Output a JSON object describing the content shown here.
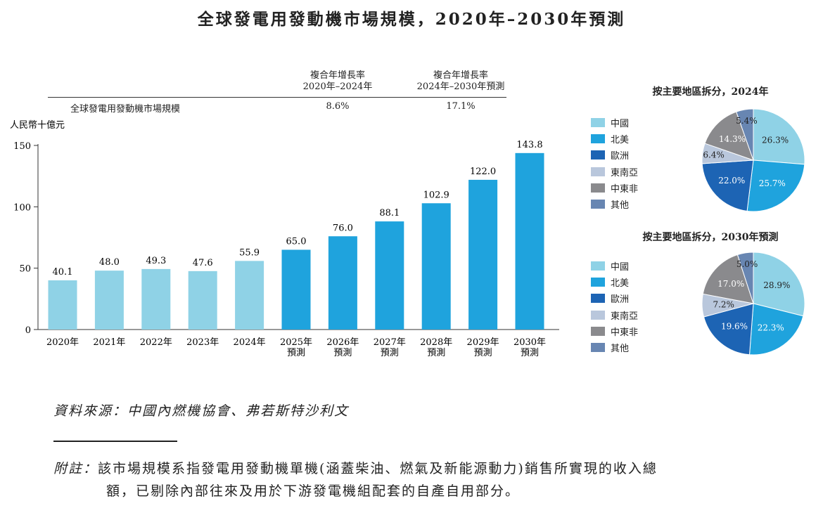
{
  "title": "全球發電用發動機市場規模，2020年–2030年預測",
  "cagr_table": {
    "row_label": "全球發電用發動機市場規模",
    "columns": [
      {
        "header_line1": "複合年增長率",
        "header_line2": "2020年–2024年",
        "value": "8.6%"
      },
      {
        "header_line1": "複合年增長率",
        "header_line2": "2024年–2030年預測",
        "value": "17.1%"
      }
    ]
  },
  "chart_data": [
    {
      "type": "bar",
      "title": "全球發電用發動機市場規模，2020年–2030年預測",
      "ylabel": "人民幣十億元",
      "xlabel": "",
      "ylim": [
        0,
        150
      ],
      "yticks": [
        0,
        50,
        100,
        150
      ],
      "categories": [
        "2020年",
        "2021年",
        "2022年",
        "2023年",
        "2024年",
        "2025年\n預測",
        "2026年\n預測",
        "2027年\n預測",
        "2028年\n預測",
        "2029年\n預測",
        "2030年\n預測"
      ],
      "values": [
        40.1,
        48.0,
        49.3,
        47.6,
        55.9,
        65.0,
        76.0,
        88.1,
        102.9,
        122.0,
        143.8
      ],
      "value_labels": [
        "40.1",
        "48.0",
        "49.3",
        "47.6",
        "55.9",
        "65.0",
        "76.0",
        "88.1",
        "102.9",
        "122.0",
        "143.8"
      ],
      "colors": {
        "historical": "#8fd2e6",
        "forecast": "#1fa3dd"
      }
    },
    {
      "type": "pie",
      "title": "按主要地區拆分，2024年",
      "labels": [
        "中國",
        "北美",
        "歐洲",
        "東南亞",
        "中東非",
        "其他"
      ],
      "values": [
        26.3,
        25.7,
        22.0,
        6.4,
        14.3,
        5.4
      ],
      "value_labels": [
        "26.3%",
        "25.7%",
        "22.0%",
        "6.4%",
        "14.3%",
        "5.4%"
      ]
    },
    {
      "type": "pie",
      "title": "按主要地區拆分，2030年預測",
      "labels": [
        "中國",
        "北美",
        "歐洲",
        "東南亞",
        "中東非",
        "其他"
      ],
      "values": [
        28.9,
        22.3,
        19.6,
        7.2,
        17.0,
        5.0
      ],
      "value_labels": [
        "28.9%",
        "22.3%",
        "19.6%",
        "7.2%",
        "17.0%",
        "5.0%"
      ]
    }
  ],
  "legend": {
    "labels": [
      "中國",
      "北美",
      "歐洲",
      "東南亞",
      "中東非",
      "其他"
    ],
    "colors": [
      "#8fd2e6",
      "#1fa3dd",
      "#1d64b4",
      "#b9c7dc",
      "#8a8a8d",
      "#6886b2"
    ]
  },
  "source": "資料來源：中國內燃機協會、弗若斯特沙利文",
  "note": {
    "prefix": "附註：",
    "line1": "該市場規模系指發電用發動機單機(涵蓋柴油、燃氣及新能源動力)銷售所實現的收入總",
    "line2": "額，已剔除內部往來及用於下游發電機組配套的自產自用部分。"
  }
}
